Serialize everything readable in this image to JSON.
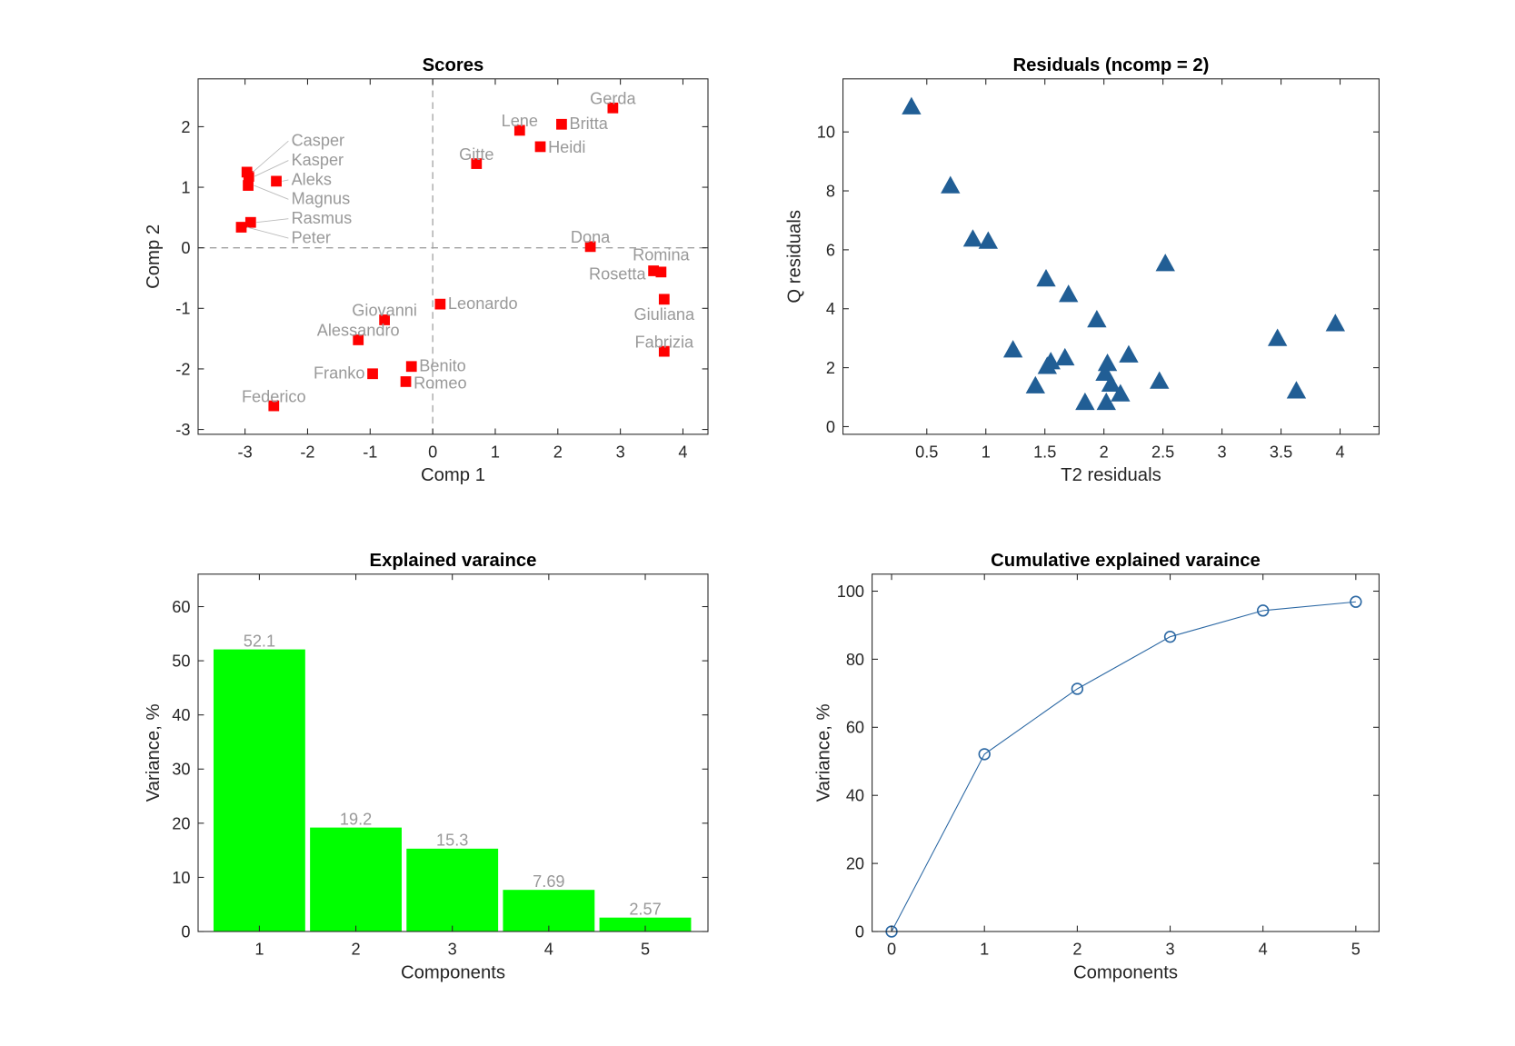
{
  "chart_data": [
    {
      "type": "scatter",
      "title": "Scores",
      "xlabel": "Comp 1",
      "ylabel": "Comp 2",
      "xlim": [
        -3.75,
        4.4
      ],
      "ylim": [
        -3.08,
        2.79
      ],
      "xticks": [
        -3,
        -2,
        -1,
        0,
        1,
        2,
        3,
        4
      ],
      "yticks": [
        -3,
        -2,
        -1,
        0,
        1,
        2
      ],
      "grid": false,
      "zero_lines": true,
      "marker": "square",
      "color": "#ff0000",
      "label_color": "#999999",
      "points": [
        {
          "label": "Gerda",
          "x": 2.88,
          "y": 2.31
        },
        {
          "label": "Britta",
          "x": 2.06,
          "y": 2.04
        },
        {
          "label": "Lene",
          "x": 1.39,
          "y": 1.94
        },
        {
          "label": "Heidi",
          "x": 1.72,
          "y": 1.67
        },
        {
          "label": "Gitte",
          "x": 0.7,
          "y": 1.39
        },
        {
          "label": "Casper",
          "x": -2.97,
          "y": 1.25
        },
        {
          "label": "Kasper",
          "x": -2.94,
          "y": 1.18
        },
        {
          "label": "Magnus",
          "x": -2.95,
          "y": 1.03
        },
        {
          "label": "Aleks",
          "x": -2.5,
          "y": 1.1
        },
        {
          "label": "Rasmus",
          "x": -2.91,
          "y": 0.42
        },
        {
          "label": "Peter",
          "x": -3.06,
          "y": 0.34
        },
        {
          "label": "Dona",
          "x": 2.52,
          "y": 0.02
        },
        {
          "label": "Rosetta",
          "x": 3.53,
          "y": -0.38
        },
        {
          "label": "Romina",
          "x": 3.65,
          "y": -0.4
        },
        {
          "label": "Giuliana",
          "x": 3.7,
          "y": -0.85
        },
        {
          "label": "Fabrizia",
          "x": 3.7,
          "y": -1.71
        },
        {
          "label": "Leonardo",
          "x": 0.12,
          "y": -0.93
        },
        {
          "label": "Giovanni",
          "x": -0.77,
          "y": -1.19
        },
        {
          "label": "Alessandro",
          "x": -1.19,
          "y": -1.52
        },
        {
          "label": "Benito",
          "x": -0.34,
          "y": -1.96
        },
        {
          "label": "Franko",
          "x": -0.96,
          "y": -2.08
        },
        {
          "label": "Romeo",
          "x": -0.43,
          "y": -2.21
        },
        {
          "label": "Federico",
          "x": -2.54,
          "y": -2.61
        }
      ]
    },
    {
      "type": "scatter",
      "title": "Residuals (ncomp = 2)",
      "xlabel": "T2 residuals",
      "ylabel": "Q residuals",
      "xlim": [
        -0.21,
        4.33
      ],
      "ylim": [
        -0.26,
        11.8
      ],
      "xticks": [
        0.5,
        1,
        1.5,
        2,
        2.5,
        3,
        3.5,
        4
      ],
      "yticks": [
        0,
        2,
        4,
        6,
        8,
        10
      ],
      "grid": false,
      "marker": "triangle",
      "color": "#215e95",
      "points": [
        {
          "x": 0.37,
          "y": 10.86
        },
        {
          "x": 0.7,
          "y": 8.18
        },
        {
          "x": 0.89,
          "y": 6.37
        },
        {
          "x": 1.02,
          "y": 6.3
        },
        {
          "x": 1.51,
          "y": 5.02
        },
        {
          "x": 2.52,
          "y": 5.54
        },
        {
          "x": 1.7,
          "y": 4.49
        },
        {
          "x": 1.94,
          "y": 3.63
        },
        {
          "x": 1.23,
          "y": 2.61
        },
        {
          "x": 1.55,
          "y": 2.21
        },
        {
          "x": 1.52,
          "y": 2.05
        },
        {
          "x": 1.67,
          "y": 2.34
        },
        {
          "x": 2.21,
          "y": 2.44
        },
        {
          "x": 2.03,
          "y": 2.15
        },
        {
          "x": 2.01,
          "y": 1.82
        },
        {
          "x": 2.06,
          "y": 1.45
        },
        {
          "x": 2.14,
          "y": 1.12
        },
        {
          "x": 1.42,
          "y": 1.39
        },
        {
          "x": 2.47,
          "y": 1.55
        },
        {
          "x": 1.84,
          "y": 0.83
        },
        {
          "x": 2.02,
          "y": 0.83
        },
        {
          "x": 3.47,
          "y": 3.0
        },
        {
          "x": 3.96,
          "y": 3.5
        },
        {
          "x": 3.63,
          "y": 1.22
        }
      ]
    },
    {
      "type": "bar",
      "title": "Explained varaince",
      "xlabel": "Components",
      "ylabel": "Variance, %",
      "xlim": [
        0.365,
        5.65
      ],
      "ylim": [
        0,
        66
      ],
      "xticks": [
        1,
        2,
        3,
        4,
        5
      ],
      "yticks": [
        0,
        10,
        20,
        30,
        40,
        50,
        60
      ],
      "categories": [
        1,
        2,
        3,
        4,
        5
      ],
      "values": [
        52.1,
        19.2,
        15.3,
        7.69,
        2.57
      ],
      "data_labels": [
        "52.1",
        "19.2",
        "15.3",
        "7.69",
        "2.57"
      ],
      "color": "#00ff00",
      "label_color": "#999999",
      "grid": false
    },
    {
      "type": "line",
      "title": "Cumulative explained varaince",
      "xlabel": "Components",
      "ylabel": "Variance, %",
      "xlim": [
        -0.21,
        5.25
      ],
      "ylim": [
        0,
        105
      ],
      "xticks": [
        0,
        1,
        2,
        3,
        4,
        5
      ],
      "yticks": [
        0,
        20,
        40,
        60,
        80,
        100
      ],
      "x": [
        0,
        1,
        2,
        3,
        4,
        5
      ],
      "y": [
        0,
        52.1,
        71.3,
        86.6,
        94.3,
        96.87
      ],
      "marker": "circle",
      "color": "#2a67a3",
      "grid": false
    }
  ]
}
